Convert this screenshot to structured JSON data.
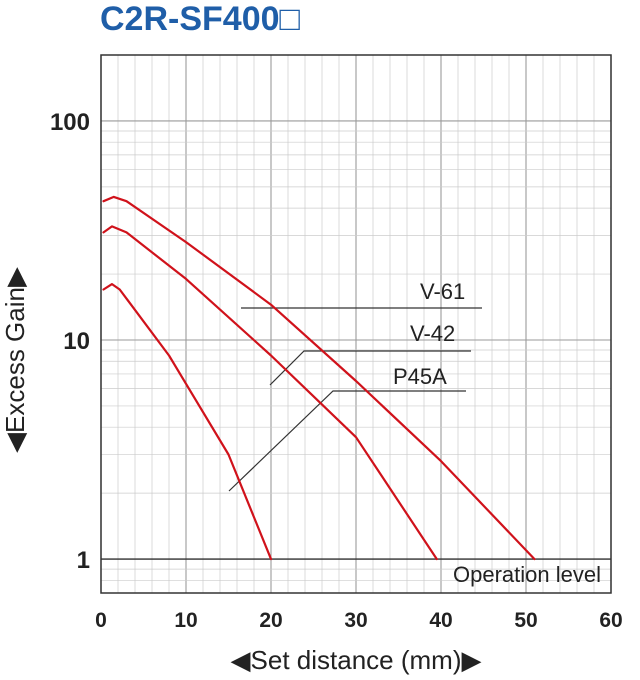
{
  "chart_data": {
    "type": "line",
    "title": "C2R-SF400□",
    "xlabel": "◀Set distance (mm)▶",
    "ylabel": "◀Excess Gain▶",
    "xlim": [
      0,
      60
    ],
    "ylim": [
      0.7,
      200
    ],
    "yscale": "log",
    "x_ticks": [
      "0",
      "10",
      "20",
      "30",
      "40",
      "50",
      "60"
    ],
    "y_ticks": [
      "1",
      "10",
      "100"
    ],
    "grid": true,
    "series": [
      {
        "name": "V-61",
        "color": "#d0121b",
        "points": [
          [
            0.3,
            43
          ],
          [
            1.5,
            45
          ],
          [
            3,
            43
          ],
          [
            10,
            28
          ],
          [
            20,
            14.5
          ],
          [
            30,
            6.5
          ],
          [
            40,
            2.8
          ],
          [
            51,
            1
          ]
        ]
      },
      {
        "name": "V-42",
        "color": "#d0121b",
        "points": [
          [
            0.3,
            31
          ],
          [
            1.3,
            33
          ],
          [
            3,
            31
          ],
          [
            10,
            19
          ],
          [
            20,
            8.5
          ],
          [
            30,
            3.6
          ],
          [
            39.5,
            1
          ]
        ]
      },
      {
        "name": "P45A",
        "color": "#d0121b",
        "points": [
          [
            0.3,
            17
          ],
          [
            1.3,
            18
          ],
          [
            2.2,
            17
          ],
          [
            8,
            8.5
          ],
          [
            15,
            3
          ],
          [
            20,
            1
          ]
        ]
      }
    ],
    "annotations": [
      {
        "text": "Operation level"
      }
    ]
  }
}
